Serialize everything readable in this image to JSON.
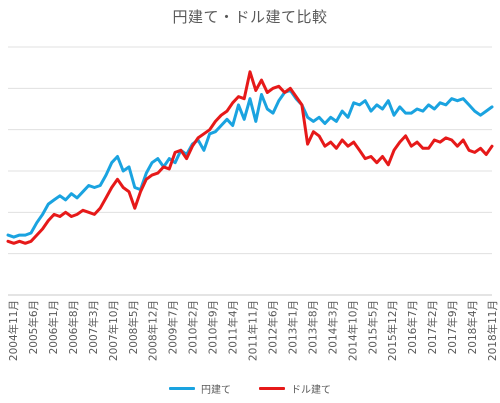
{
  "chart_data": {
    "type": "line",
    "title": "円建て・ドル建て比較",
    "xlabel": "",
    "ylabel": "",
    "grid": true,
    "legend_position": "bottom",
    "x_ticks": [
      "2004年11月",
      "2005年6月",
      "2006年1月",
      "2006年8月",
      "2007年3月",
      "2007年10月",
      "2008年5月",
      "2008年12月",
      "2009年7月",
      "2010年2月",
      "2010年9月",
      "2011年4月",
      "2011年11月",
      "2012年6月",
      "2013年1月",
      "2013年8月",
      "2014年3月",
      "2014年10月",
      "2015年5月",
      "2015年12月",
      "2016年7月",
      "2017年2月",
      "2017年9月",
      "2018年4月",
      "2018年11月"
    ],
    "ylim": [
      0,
      6
    ],
    "y_gridlines": [
      0,
      1,
      2,
      3,
      4,
      5,
      6
    ],
    "series": [
      {
        "name": "円建て",
        "color": "#1aa3e0",
        "values": [
          [
            0,
            1.45
          ],
          [
            2,
            1.4
          ],
          [
            4,
            1.45
          ],
          [
            6,
            1.45
          ],
          [
            8,
            1.5
          ],
          [
            10,
            1.75
          ],
          [
            12,
            1.95
          ],
          [
            14,
            2.2
          ],
          [
            16,
            2.3
          ],
          [
            18,
            2.4
          ],
          [
            20,
            2.3
          ],
          [
            22,
            2.45
          ],
          [
            24,
            2.35
          ],
          [
            26,
            2.5
          ],
          [
            28,
            2.65
          ],
          [
            30,
            2.6
          ],
          [
            32,
            2.65
          ],
          [
            34,
            2.9
          ],
          [
            36,
            3.2
          ],
          [
            38,
            3.35
          ],
          [
            40,
            3.0
          ],
          [
            42,
            3.1
          ],
          [
            44,
            2.6
          ],
          [
            46,
            2.55
          ],
          [
            48,
            2.95
          ],
          [
            50,
            3.2
          ],
          [
            52,
            3.3
          ],
          [
            54,
            3.1
          ],
          [
            56,
            3.3
          ],
          [
            58,
            3.2
          ],
          [
            60,
            3.5
          ],
          [
            62,
            3.4
          ],
          [
            64,
            3.65
          ],
          [
            66,
            3.75
          ],
          [
            68,
            3.5
          ],
          [
            70,
            3.9
          ],
          [
            72,
            3.95
          ],
          [
            74,
            4.1
          ],
          [
            76,
            4.25
          ],
          [
            78,
            4.1
          ],
          [
            80,
            4.6
          ],
          [
            82,
            4.25
          ],
          [
            84,
            4.75
          ],
          [
            86,
            4.2
          ],
          [
            88,
            4.85
          ],
          [
            90,
            4.5
          ],
          [
            92,
            4.4
          ],
          [
            94,
            4.7
          ],
          [
            96,
            4.9
          ],
          [
            98,
            4.95
          ],
          [
            100,
            4.75
          ],
          [
            102,
            4.6
          ],
          [
            104,
            4.3
          ],
          [
            106,
            4.2
          ],
          [
            108,
            4.3
          ],
          [
            110,
            4.15
          ],
          [
            112,
            4.3
          ],
          [
            114,
            4.2
          ],
          [
            116,
            4.45
          ],
          [
            118,
            4.3
          ],
          [
            120,
            4.65
          ],
          [
            122,
            4.6
          ],
          [
            124,
            4.7
          ],
          [
            126,
            4.45
          ],
          [
            128,
            4.6
          ],
          [
            130,
            4.5
          ],
          [
            132,
            4.7
          ],
          [
            134,
            4.35
          ],
          [
            136,
            4.55
          ],
          [
            138,
            4.4
          ],
          [
            140,
            4.4
          ],
          [
            142,
            4.5
          ],
          [
            144,
            4.45
          ],
          [
            146,
            4.6
          ],
          [
            148,
            4.5
          ],
          [
            150,
            4.65
          ],
          [
            152,
            4.6
          ],
          [
            154,
            4.75
          ],
          [
            156,
            4.7
          ],
          [
            158,
            4.75
          ],
          [
            160,
            4.6
          ],
          [
            162,
            4.45
          ],
          [
            164,
            4.35
          ],
          [
            166,
            4.45
          ],
          [
            168,
            4.55
          ]
        ]
      },
      {
        "name": "ドル建て",
        "color": "#e61919",
        "values": [
          [
            0,
            1.3
          ],
          [
            2,
            1.25
          ],
          [
            4,
            1.3
          ],
          [
            6,
            1.25
          ],
          [
            8,
            1.3
          ],
          [
            10,
            1.45
          ],
          [
            12,
            1.6
          ],
          [
            14,
            1.8
          ],
          [
            16,
            1.95
          ],
          [
            18,
            1.9
          ],
          [
            20,
            2.0
          ],
          [
            22,
            1.9
          ],
          [
            24,
            1.95
          ],
          [
            26,
            2.05
          ],
          [
            28,
            2.0
          ],
          [
            30,
            1.95
          ],
          [
            32,
            2.1
          ],
          [
            34,
            2.35
          ],
          [
            36,
            2.6
          ],
          [
            38,
            2.8
          ],
          [
            40,
            2.6
          ],
          [
            42,
            2.5
          ],
          [
            44,
            2.1
          ],
          [
            46,
            2.5
          ],
          [
            48,
            2.8
          ],
          [
            50,
            2.9
          ],
          [
            52,
            2.95
          ],
          [
            54,
            3.1
          ],
          [
            56,
            3.05
          ],
          [
            58,
            3.45
          ],
          [
            60,
            3.5
          ],
          [
            62,
            3.3
          ],
          [
            64,
            3.6
          ],
          [
            66,
            3.8
          ],
          [
            68,
            3.9
          ],
          [
            70,
            4.0
          ],
          [
            72,
            4.2
          ],
          [
            74,
            4.35
          ],
          [
            76,
            4.45
          ],
          [
            78,
            4.65
          ],
          [
            80,
            4.8
          ],
          [
            82,
            4.75
          ],
          [
            84,
            5.4
          ],
          [
            86,
            4.95
          ],
          [
            88,
            5.2
          ],
          [
            90,
            4.9
          ],
          [
            92,
            5.0
          ],
          [
            94,
            5.05
          ],
          [
            96,
            4.9
          ],
          [
            98,
            5.0
          ],
          [
            100,
            4.8
          ],
          [
            102,
            4.6
          ],
          [
            104,
            3.65
          ],
          [
            106,
            3.95
          ],
          [
            108,
            3.85
          ],
          [
            110,
            3.6
          ],
          [
            112,
            3.7
          ],
          [
            114,
            3.55
          ],
          [
            116,
            3.75
          ],
          [
            118,
            3.6
          ],
          [
            120,
            3.7
          ],
          [
            122,
            3.5
          ],
          [
            124,
            3.3
          ],
          [
            126,
            3.35
          ],
          [
            128,
            3.2
          ],
          [
            130,
            3.35
          ],
          [
            132,
            3.15
          ],
          [
            134,
            3.5
          ],
          [
            136,
            3.7
          ],
          [
            138,
            3.85
          ],
          [
            140,
            3.6
          ],
          [
            142,
            3.7
          ],
          [
            144,
            3.55
          ],
          [
            146,
            3.55
          ],
          [
            148,
            3.75
          ],
          [
            150,
            3.7
          ],
          [
            152,
            3.8
          ],
          [
            154,
            3.75
          ],
          [
            156,
            3.6
          ],
          [
            158,
            3.75
          ],
          [
            160,
            3.5
          ],
          [
            162,
            3.45
          ],
          [
            164,
            3.55
          ],
          [
            166,
            3.4
          ],
          [
            168,
            3.6
          ]
        ]
      }
    ]
  }
}
